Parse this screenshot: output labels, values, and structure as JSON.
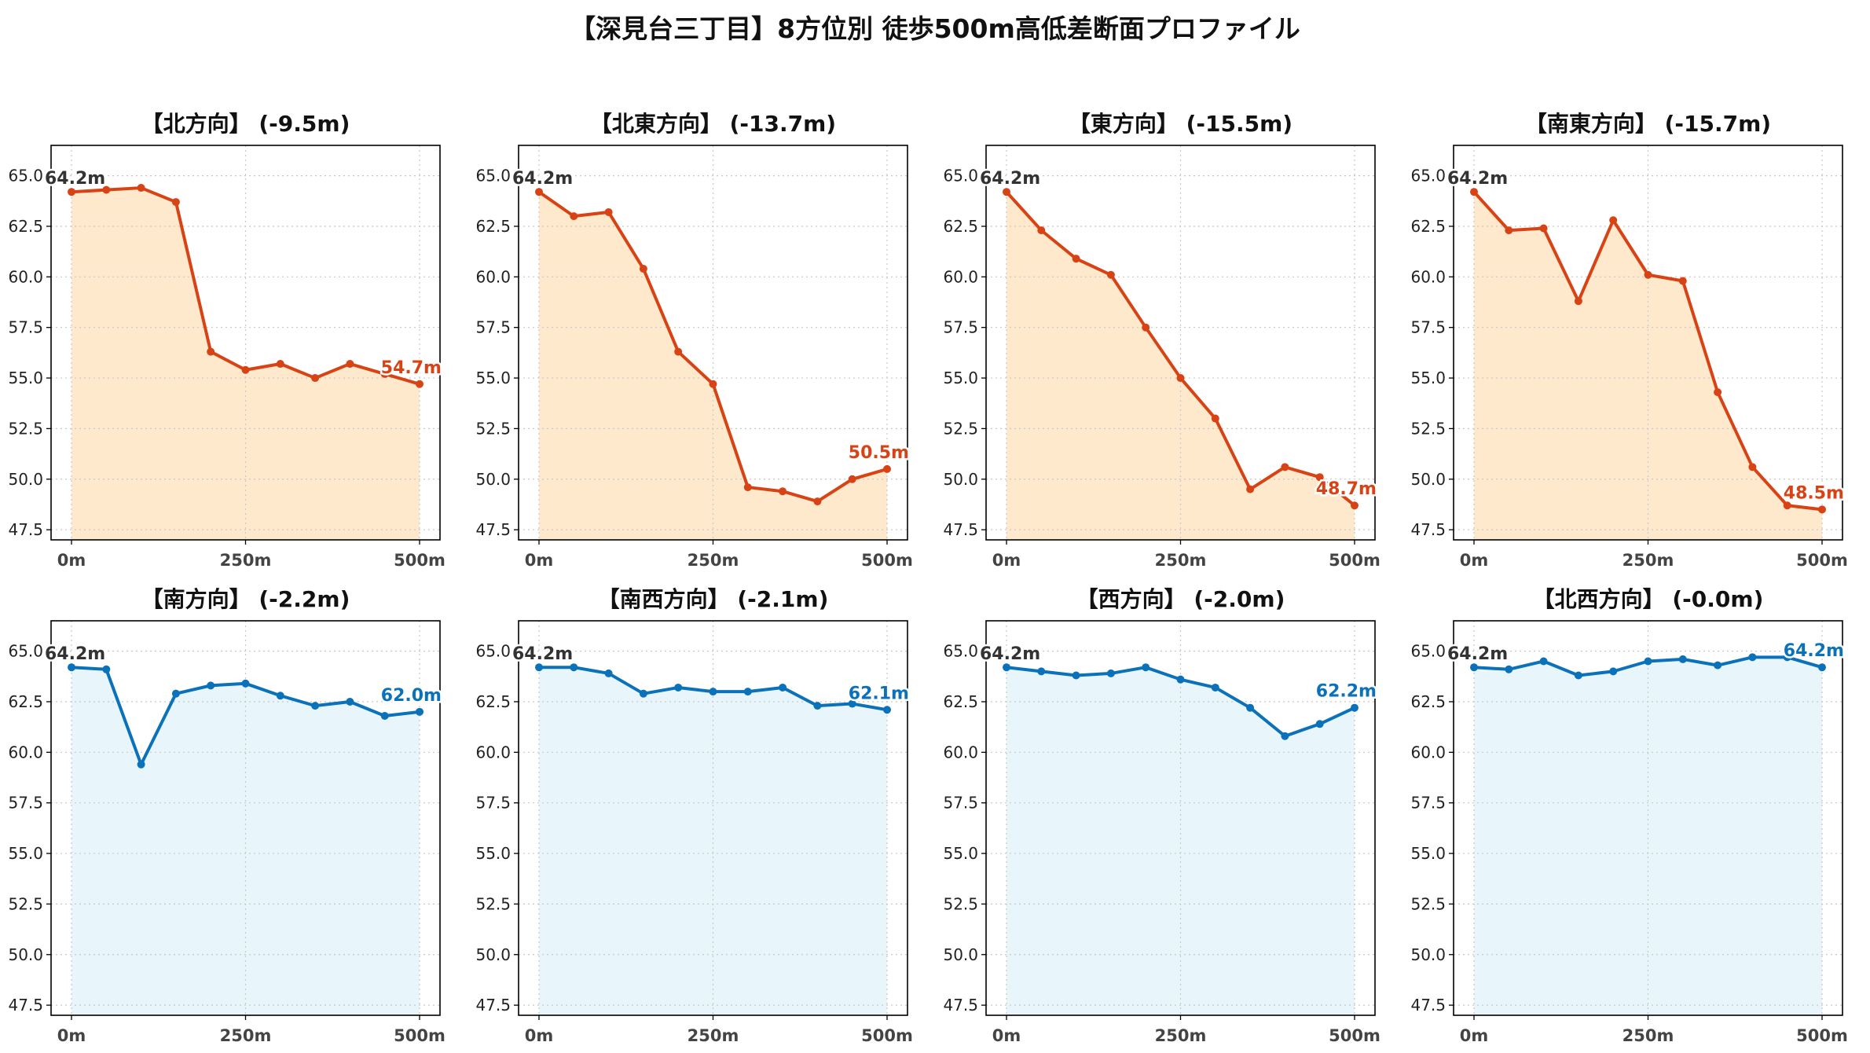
{
  "figure_title": "【深見台三丁目】8方位別 徒歩500m高低差断面プロファイル",
  "colors": {
    "down_line": "#d84315",
    "down_fill": "#ffe9cc",
    "flat_line": "#0b72b9",
    "flat_fill": "#e8f6fc",
    "grid": "#c8c8c8"
  },
  "chart_data": [
    {
      "type": "area",
      "title": "【北方向】 (-9.5m)",
      "trend": "down",
      "x": [
        0,
        50,
        100,
        150,
        200,
        250,
        300,
        350,
        400,
        450,
        500
      ],
      "values": [
        64.2,
        64.3,
        64.4,
        63.7,
        56.3,
        55.4,
        55.7,
        55.0,
        55.7,
        55.2,
        54.7
      ],
      "ylim": [
        47.0,
        66.5
      ],
      "yticks": [
        "47.5",
        "50.0",
        "52.5",
        "55.0",
        "57.5",
        "60.0",
        "62.5",
        "65.0"
      ],
      "xticks": [
        "0m",
        "250m",
        "500m"
      ],
      "start_label": "64.2m",
      "end_label": "54.7m",
      "grid": true
    },
    {
      "type": "area",
      "title": "【北東方向】 (-13.7m)",
      "trend": "down",
      "x": [
        0,
        50,
        100,
        150,
        200,
        250,
        300,
        350,
        400,
        450,
        500
      ],
      "values": [
        64.2,
        63.0,
        63.2,
        60.4,
        56.3,
        54.7,
        49.6,
        49.4,
        48.9,
        50.0,
        50.5
      ],
      "ylim": [
        47.0,
        66.5
      ],
      "yticks": [
        "47.5",
        "50.0",
        "52.5",
        "55.0",
        "57.5",
        "60.0",
        "62.5",
        "65.0"
      ],
      "xticks": [
        "0m",
        "250m",
        "500m"
      ],
      "start_label": "64.2m",
      "end_label": "50.5m",
      "grid": true
    },
    {
      "type": "area",
      "title": "【東方向】 (-15.5m)",
      "trend": "down",
      "x": [
        0,
        50,
        100,
        150,
        200,
        250,
        300,
        350,
        400,
        450,
        500
      ],
      "values": [
        64.2,
        62.3,
        60.9,
        60.1,
        57.5,
        55.0,
        53.0,
        49.5,
        50.6,
        50.1,
        48.7
      ],
      "ylim": [
        47.0,
        66.5
      ],
      "yticks": [
        "47.5",
        "50.0",
        "52.5",
        "55.0",
        "57.5",
        "60.0",
        "62.5",
        "65.0"
      ],
      "xticks": [
        "0m",
        "250m",
        "500m"
      ],
      "start_label": "64.2m",
      "end_label": "48.7m",
      "grid": true
    },
    {
      "type": "area",
      "title": "【南東方向】 (-15.7m)",
      "trend": "down",
      "x": [
        0,
        50,
        100,
        150,
        200,
        250,
        300,
        350,
        400,
        450,
        500
      ],
      "values": [
        64.2,
        62.3,
        62.4,
        58.8,
        62.8,
        60.1,
        59.8,
        54.3,
        50.6,
        48.7,
        48.5
      ],
      "ylim": [
        47.0,
        66.5
      ],
      "yticks": [
        "47.5",
        "50.0",
        "52.5",
        "55.0",
        "57.5",
        "60.0",
        "62.5",
        "65.0"
      ],
      "xticks": [
        "0m",
        "250m",
        "500m"
      ],
      "start_label": "64.2m",
      "end_label": "48.5m",
      "grid": true
    },
    {
      "type": "area",
      "title": "【南方向】 (-2.2m)",
      "trend": "flat",
      "x": [
        0,
        50,
        100,
        150,
        200,
        250,
        300,
        350,
        400,
        450,
        500
      ],
      "values": [
        64.2,
        64.1,
        59.4,
        62.9,
        63.3,
        63.4,
        62.8,
        62.3,
        62.5,
        61.8,
        62.0
      ],
      "ylim": [
        47.0,
        66.5
      ],
      "yticks": [
        "47.5",
        "50.0",
        "52.5",
        "55.0",
        "57.5",
        "60.0",
        "62.5",
        "65.0"
      ],
      "xticks": [
        "0m",
        "250m",
        "500m"
      ],
      "start_label": "64.2m",
      "end_label": "62.0m",
      "grid": true
    },
    {
      "type": "area",
      "title": "【南西方向】 (-2.1m)",
      "trend": "flat",
      "x": [
        0,
        50,
        100,
        150,
        200,
        250,
        300,
        350,
        400,
        450,
        500
      ],
      "values": [
        64.2,
        64.2,
        63.9,
        62.9,
        63.2,
        63.0,
        63.0,
        63.2,
        62.3,
        62.4,
        62.1
      ],
      "ylim": [
        47.0,
        66.5
      ],
      "yticks": [
        "47.5",
        "50.0",
        "52.5",
        "55.0",
        "57.5",
        "60.0",
        "62.5",
        "65.0"
      ],
      "xticks": [
        "0m",
        "250m",
        "500m"
      ],
      "start_label": "64.2m",
      "end_label": "62.1m",
      "grid": true
    },
    {
      "type": "area",
      "title": "【西方向】 (-2.0m)",
      "trend": "flat",
      "x": [
        0,
        50,
        100,
        150,
        200,
        250,
        300,
        350,
        400,
        450,
        500
      ],
      "values": [
        64.2,
        64.0,
        63.8,
        63.9,
        64.2,
        63.6,
        63.2,
        62.2,
        60.8,
        61.4,
        62.2
      ],
      "ylim": [
        47.0,
        66.5
      ],
      "yticks": [
        "47.5",
        "50.0",
        "52.5",
        "55.0",
        "57.5",
        "60.0",
        "62.5",
        "65.0"
      ],
      "xticks": [
        "0m",
        "250m",
        "500m"
      ],
      "start_label": "64.2m",
      "end_label": "62.2m",
      "grid": true
    },
    {
      "type": "area",
      "title": "【北西方向】 (-0.0m)",
      "trend": "flat",
      "x": [
        0,
        50,
        100,
        150,
        200,
        250,
        300,
        350,
        400,
        450,
        500
      ],
      "values": [
        64.2,
        64.1,
        64.5,
        63.8,
        64.0,
        64.5,
        64.6,
        64.3,
        64.7,
        64.7,
        64.2
      ],
      "ylim": [
        47.0,
        66.5
      ],
      "yticks": [
        "47.5",
        "50.0",
        "52.5",
        "55.0",
        "57.5",
        "60.0",
        "62.5",
        "65.0"
      ],
      "xticks": [
        "0m",
        "250m",
        "500m"
      ],
      "start_label": "64.2m",
      "end_label": "64.2m",
      "grid": true
    }
  ]
}
